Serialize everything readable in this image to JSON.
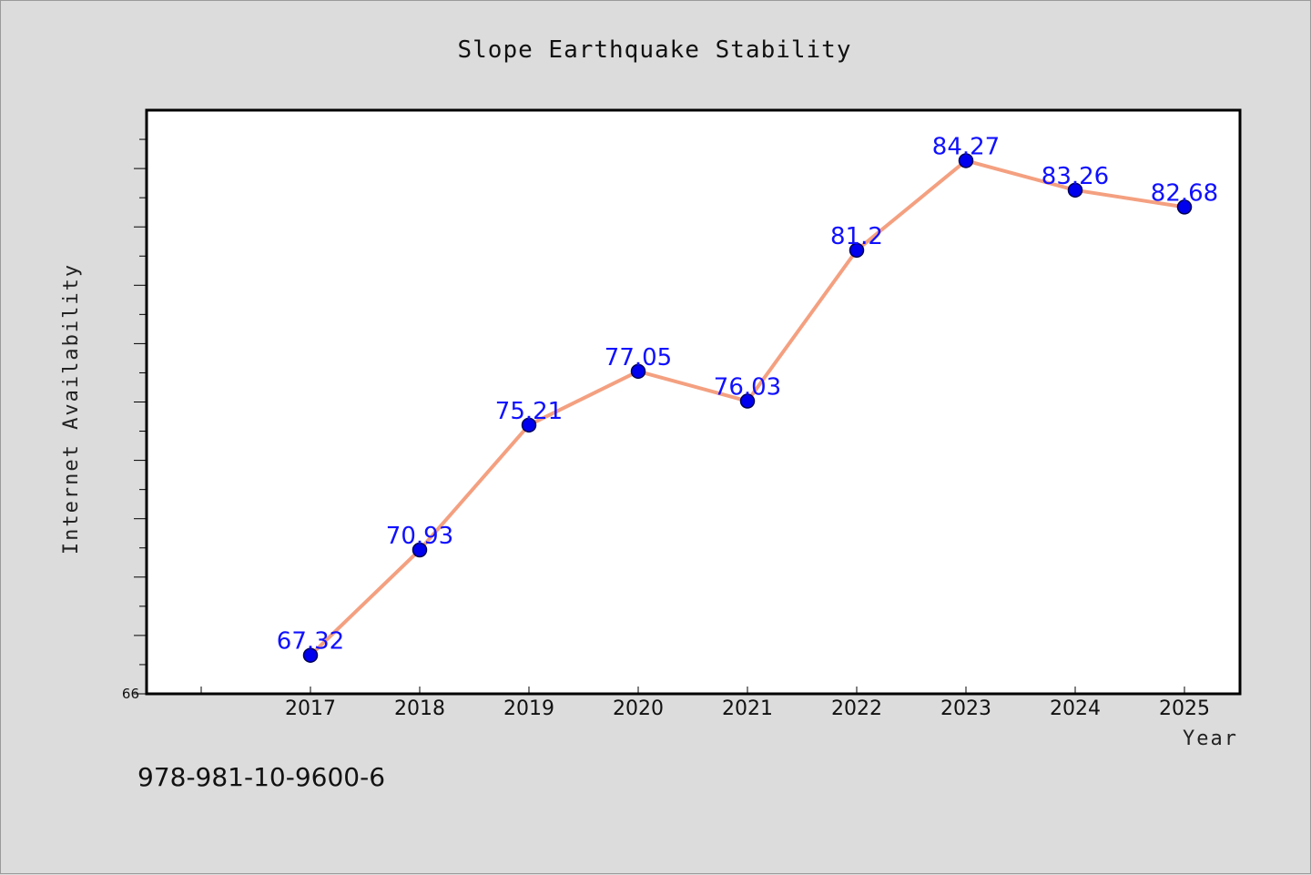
{
  "chart_data": {
    "type": "line",
    "title": "Slope Earthquake Stability",
    "xlabel": "Year",
    "ylabel": "Internet Availability",
    "categories": [
      "2017",
      "2018",
      "2019",
      "2020",
      "2021",
      "2022",
      "2023",
      "2024",
      "2025"
    ],
    "values": [
      67.32,
      70.93,
      75.21,
      77.05,
      76.03,
      81.2,
      84.27,
      83.26,
      82.68
    ],
    "data_labels": [
      "67.32",
      "70.93",
      "75.21",
      "77.05",
      "76.03",
      "81.2",
      "84.27",
      "83.26",
      "82.68"
    ],
    "y_tick_labels": [
      "66"
    ],
    "ylim": [
      66,
      86
    ],
    "y_minor_step": 1,
    "grid": false,
    "legend": "none",
    "colors": {
      "line": "#f4a080",
      "marker": "#0000ee",
      "marker_edge": "#000055",
      "data_label": "#1010ff",
      "plot_background": "#ffffff",
      "figure_background": "#dcdcdc"
    }
  },
  "footer": {
    "isbn": "978-981-10-9600-6"
  }
}
